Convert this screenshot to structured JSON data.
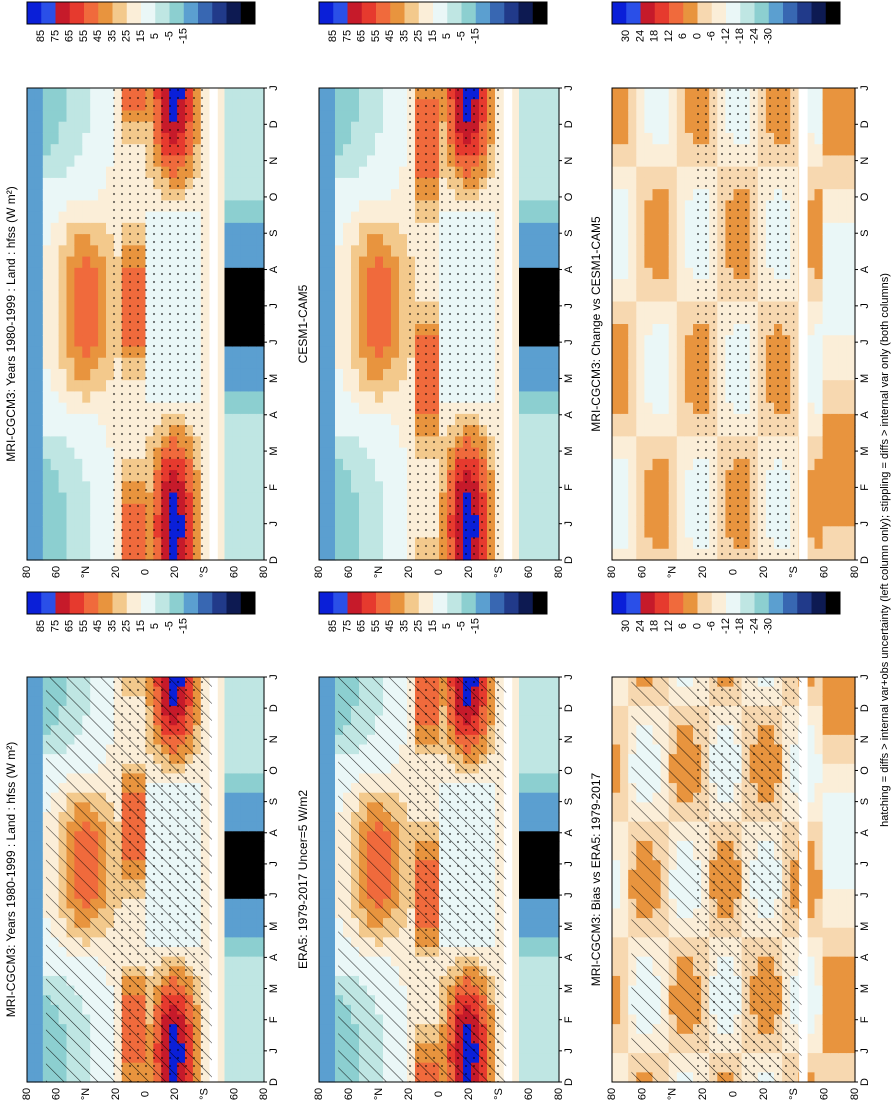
{
  "chart_data": {
    "type": "heatmap",
    "variable": "hfss",
    "units": "W m-2",
    "footnote": "hatching = diffs > internal var+obs uncertainty (left column only); stippling = diffs > internal var only (both columns)",
    "month_labels": [
      "D",
      "J",
      "F",
      "M",
      "A",
      "M",
      "J",
      "J",
      "A",
      "S",
      "O",
      "N",
      "D",
      "J"
    ],
    "lat_ticks": [
      "80",
      "60",
      "°N",
      "20",
      "0",
      "20",
      "°S",
      "60",
      "80"
    ],
    "colorbar_abs": [
      "85",
      "75",
      "65",
      "55",
      "45",
      "35",
      "25",
      "15",
      "5",
      "-5",
      "-15"
    ],
    "colorbar_diff": [
      "30",
      "24",
      "18",
      "12",
      "6",
      "0",
      "-6",
      "-12",
      "-18",
      "-24",
      "-30"
    ],
    "panels": [
      {
        "id": "p1",
        "title": "MRI-CGCM3: Years 1980-1999 : Land : hfss (W m²)",
        "kind": "abs",
        "hatch": true,
        "stipple": true
      },
      {
        "id": "p2",
        "title": "MRI-CGCM3: Years 1980-1999 : Land : hfss (W m²)",
        "kind": "abs",
        "hatch": false,
        "stipple": true
      },
      {
        "id": "p3",
        "title": "ERA5: 1979-2017 Uncer=5 W/m2",
        "kind": "abs",
        "hatch": true,
        "stipple": true
      },
      {
        "id": "p4",
        "title": "CESM1-CAM5",
        "kind": "abs",
        "hatch": false,
        "stipple": true
      },
      {
        "id": "p5",
        "title": "MRI-CGCM3: Bias vs ERA5: 1979-2017",
        "kind": "diff",
        "hatch": true,
        "stipple": true
      },
      {
        "id": "p6",
        "title": "MRI-CGCM3: Change vs CESM1-CAM5",
        "kind": "diff",
        "hatch": false,
        "stipple": true
      }
    ]
  },
  "palette": {
    "abs": [
      "#0a1fd8",
      "#2a4fe8",
      "#c61a2a",
      "#e63a2e",
      "#f06a3c",
      "#e8943e",
      "#f3c98c",
      "#fbeed8",
      "#eaf7f7",
      "#bfe6e3",
      "#8ccfd0",
      "#5b9fd0",
      "#3867b2",
      "#213a8a",
      "#0d1a52",
      "#000000"
    ],
    "diff": [
      "#0a1fd8",
      "#2a4fe8",
      "#c61a2a",
      "#e63a2e",
      "#f06a3c",
      "#e8943e",
      "#f7d8b0",
      "#fbeed8",
      "#eaf7f7",
      "#bfe6e3",
      "#8ccfd0",
      "#5b9fd0",
      "#3867b2",
      "#213a8a",
      "#0d1a52",
      "#000000"
    ]
  }
}
